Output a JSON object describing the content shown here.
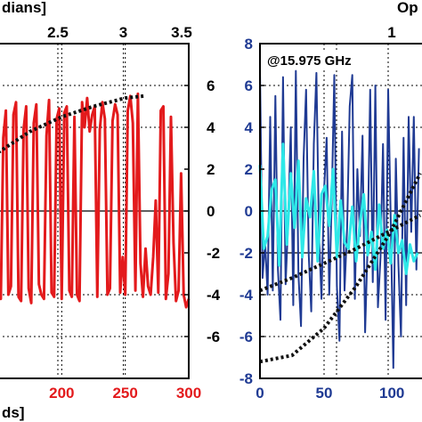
{
  "chart_data": [
    {
      "type": "line",
      "title": "",
      "top_axis_label": "dians]",
      "bottom_axis_label": "ds]",
      "top_ticks": [
        "2.5",
        "3",
        "3.5"
      ],
      "top_tick_values": [
        2.5,
        3,
        3.5
      ],
      "bottom_ticks": [
        "200",
        "250",
        "300"
      ],
      "bottom_tick_values": [
        200,
        250,
        300
      ],
      "right_ticks": [
        "6",
        "4",
        "2",
        "0",
        "-2",
        "-4",
        "-6"
      ],
      "right_tick_values": [
        6,
        4,
        2,
        0,
        -2,
        -4,
        -6
      ],
      "xlim": [
        150,
        300
      ],
      "ylim": [
        -8,
        8
      ],
      "grid": true,
      "series": [
        {
          "color": "#e31a1c",
          "style": "solid",
          "x": [
            150,
            152,
            154,
            156,
            158,
            160,
            162,
            164,
            166,
            168,
            170,
            172,
            174,
            176,
            178,
            180,
            182,
            184,
            186,
            188,
            190,
            192,
            194,
            196,
            198,
            200,
            202,
            204,
            206,
            208,
            210,
            212,
            214,
            216,
            218,
            220,
            222,
            224,
            226,
            228,
            230,
            232,
            234,
            236,
            238,
            240,
            242,
            244,
            246,
            248,
            250,
            252,
            254,
            256,
            258,
            260,
            262,
            264,
            266,
            268,
            270,
            272,
            274,
            276,
            278,
            280,
            282,
            284,
            286,
            288,
            290,
            292,
            294,
            296,
            298,
            300
          ],
          "y": [
            -3.8,
            -4.2,
            3.5,
            4.8,
            -4.0,
            -3.6,
            4.6,
            5.2,
            -4.1,
            -4.3,
            3.9,
            5.0,
            -3.7,
            -4.4,
            4.2,
            5.1,
            -3.5,
            -4.0,
            -4.2,
            3.6,
            5.3,
            -3.9,
            -4.1,
            4.4,
            4.9,
            -4.2,
            4.7,
            5.0,
            -3.8,
            -4.1,
            4.5,
            -4.0,
            -4.3,
            5.2,
            4.0,
            5.4,
            3.8,
            4.6,
            5.0,
            -4.1,
            3.9,
            5.2,
            4.4,
            -4.0,
            -3.7,
            4.3,
            5.1,
            4.6,
            -3.9,
            -2.2,
            -4.0,
            4.8,
            5.5,
            4.2,
            -3.8,
            5.6,
            -2.5,
            -4.1,
            -1.8,
            -3.6,
            -4.0,
            -2.2,
            0.5,
            -3.9,
            4.8,
            5.0,
            -4.2,
            -3.0,
            4.5,
            -1.5,
            -4.3,
            -3.8,
            1.8,
            -4.0,
            -4.6,
            -4.2
          ]
        },
        {
          "color": "#111111",
          "style": "dotted",
          "x": [
            150,
            175,
            200,
            225,
            250,
            265
          ],
          "y": [
            2.8,
            3.8,
            4.5,
            5.0,
            5.4,
            5.5
          ]
        }
      ]
    },
    {
      "type": "line",
      "title": "",
      "top_axis_label": "Op",
      "annotation": "@15.975 GHz",
      "top_ticks": [
        "1"
      ],
      "top_tick_values": [
        1
      ],
      "bottom_ticks": [
        "0",
        "50",
        "100"
      ],
      "bottom_tick_values": [
        0,
        50,
        100
      ],
      "left_ticks": [
        "8",
        "6",
        "4",
        "2",
        "0",
        "-2",
        "-4",
        "-6",
        "-8"
      ],
      "left_tick_values": [
        8,
        6,
        4,
        2,
        0,
        -2,
        -4,
        -6,
        -8
      ],
      "xlim": [
        0,
        125
      ],
      "ylim": [
        -8,
        8
      ],
      "grid": true,
      "series": [
        {
          "color": "#1f3a93",
          "style": "solid",
          "x": [
            0,
            2,
            4,
            6,
            8,
            10,
            12,
            14,
            16,
            18,
            20,
            22,
            24,
            26,
            28,
            30,
            32,
            34,
            36,
            38,
            40,
            42,
            44,
            46,
            48,
            50,
            52,
            54,
            56,
            58,
            60,
            62,
            64,
            66,
            68,
            70,
            72,
            74,
            76,
            78,
            80,
            82,
            84,
            86,
            88,
            90,
            92,
            94,
            96,
            98,
            100,
            102,
            104,
            106,
            108,
            110,
            112,
            114,
            116,
            118,
            120,
            122,
            124
          ],
          "y": [
            6.8,
            -3.2,
            -1.5,
            -4.0,
            4.5,
            -3.8,
            5.5,
            -2.8,
            -5.2,
            6.4,
            -3.5,
            -0.5,
            4.0,
            -4.5,
            6.7,
            -3.0,
            -5.5,
            2.5,
            5.8,
            -2.0,
            -4.8,
            3.2,
            6.6,
            -1.0,
            -4.2,
            1.0,
            3.5,
            -4.0,
            0.5,
            6.5,
            -3.6,
            -6.2,
            3.8,
            -3.8,
            -0.8,
            5.0,
            6.5,
            -4.2,
            2.0,
            -1.2,
            3.6,
            -5.8,
            -1.5,
            5.8,
            -3.4,
            6.0,
            -4.6,
            -2.2,
            3.2,
            -5.2,
            5.8,
            -0.5,
            -7.5,
            2.5,
            -2.5,
            -6.0,
            3.5,
            -4.5,
            4.5,
            -1.0,
            4.5,
            -2.8,
            3.0
          ]
        },
        {
          "color": "#2ee8e8",
          "style": "solid",
          "x": [
            0,
            3,
            6,
            9,
            12,
            15,
            18,
            21,
            24,
            27,
            30,
            33,
            36,
            39,
            42,
            45,
            48,
            51,
            54,
            57,
            60,
            63,
            66,
            69,
            72,
            75,
            78,
            81,
            84,
            87,
            90,
            93,
            96,
            99,
            102,
            105,
            108,
            111,
            114,
            117,
            120,
            123
          ],
          "y": [
            2.2,
            -1.8,
            -1.2,
            1.0,
            1.5,
            -2.6,
            3.2,
            -1.6,
            1.8,
            -0.8,
            2.4,
            -2.2,
            0.6,
            -0.3,
            1.9,
            -2.4,
            0.8,
            1.2,
            -0.7,
            2.0,
            -2.2,
            0.5,
            -1.5,
            -1.8,
            0.2,
            -2.4,
            -0.6,
            0.8,
            -2.1,
            -1.0,
            -2.8,
            0.3,
            -1.8,
            -0.9,
            -2.5,
            -0.2,
            -2.0,
            -1.4,
            -3.0,
            -1.6,
            -2.4,
            -2.0
          ]
        },
        {
          "color": "#111111",
          "style": "dotted",
          "x": [
            0,
            25,
            50,
            75,
            100,
            125
          ],
          "y": [
            -7.2,
            -6.9,
            -5.6,
            -3.6,
            -1.2,
            1.8
          ]
        },
        {
          "color": "#111111",
          "style": "dotted",
          "x": [
            0,
            25,
            50,
            75,
            100,
            125
          ],
          "y": [
            -3.8,
            -3.2,
            -2.5,
            -1.8,
            -1.0,
            -0.2
          ]
        }
      ]
    }
  ]
}
